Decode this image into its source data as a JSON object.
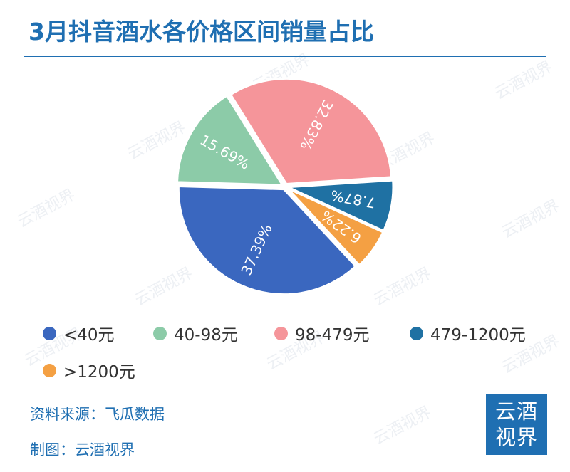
{
  "title": "3月抖音酒水各价格区间销量占比",
  "watermark_text": "云酒视界",
  "chart_data": {
    "type": "pie",
    "title": "3月抖音酒水各价格区间销量占比",
    "slices": [
      {
        "label": "<40元",
        "value": 37.39,
        "color": "#3a67bf",
        "value_label": "37.39%"
      },
      {
        "label": "40-98元",
        "value": 15.69,
        "color": "#8ccba8",
        "value_label": "15.69%"
      },
      {
        "label": "98-479元",
        "value": 32.83,
        "color": "#f5959a",
        "value_label": "32.83%"
      },
      {
        "label": "479-1200元",
        "value": 7.87,
        "color": "#1f71a3",
        "value_label": "7.87%"
      },
      {
        "label": ">1200元",
        "value": 6.22,
        "color": "#f4a043",
        "value_label": "6.22%"
      }
    ],
    "legend_position": "bottom"
  },
  "footer": {
    "source": "资料来源：飞瓜数据",
    "credit": "制图：云酒视界"
  },
  "logo": {
    "line1": "云酒",
    "line2": "视界"
  }
}
